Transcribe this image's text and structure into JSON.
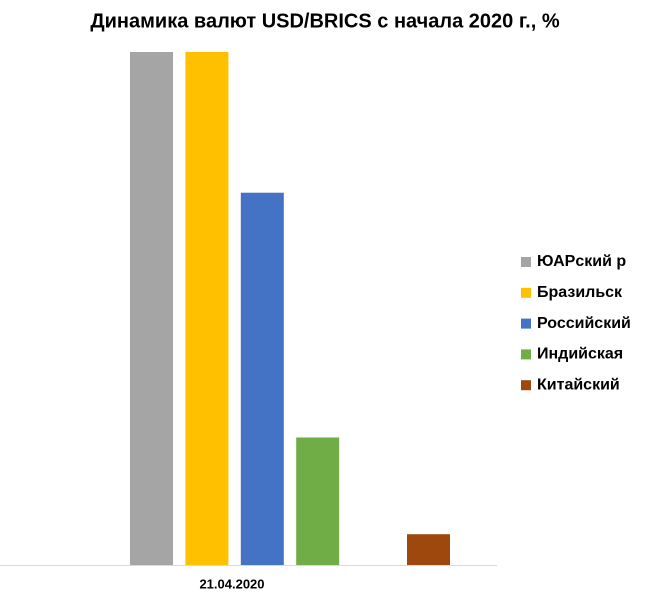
{
  "chart_data": {
    "type": "bar",
    "title": "Динамика валют USD/BRICS с начала 2020 г., %",
    "categories": [
      "21.04.2020"
    ],
    "series": [
      {
        "name": "ЮАРский р",
        "color": "#a5a5a5",
        "values": [
          35
        ]
      },
      {
        "name": "Бразильск",
        "color": "#ffc000",
        "values": [
          35
        ]
      },
      {
        "name": "Российский",
        "color": "#4472c4",
        "values": [
          25.4
        ]
      },
      {
        "name": "Индийская",
        "color": "#70ad47",
        "values": [
          8.7
        ]
      },
      {
        "name": "Китайский",
        "color": "#9e480e",
        "values": [
          2.1
        ]
      }
    ],
    "ylim": [
      0,
      35
    ],
    "legend": "right"
  }
}
